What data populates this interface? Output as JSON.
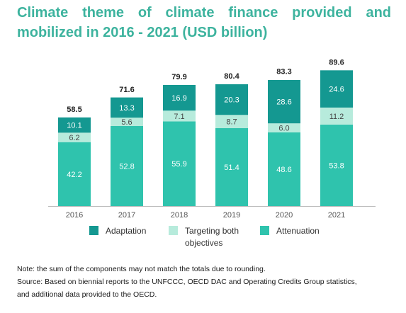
{
  "title": {
    "line1": "Climate theme of climate finance provided and",
    "line2": "mobilized in 2016 - 2021 (USD billion)"
  },
  "colors": {
    "adaptation": "#149891",
    "both": "#b7ebdc",
    "attenuation": "#2fc3ad",
    "title": "#3db39e"
  },
  "chart_data": {
    "type": "bar",
    "stacked": true,
    "categories": [
      "2016",
      "2017",
      "2018",
      "2019",
      "2020",
      "2021"
    ],
    "series": [
      {
        "name": "Attenuation",
        "values": [
          42.2,
          52.8,
          55.9,
          51.4,
          48.6,
          53.8
        ]
      },
      {
        "name": "Targeting both objectives",
        "values": [
          6.2,
          5.6,
          7.1,
          8.7,
          6.0,
          11.2
        ]
      },
      {
        "name": "Adaptation",
        "values": [
          10.1,
          13.3,
          16.9,
          20.3,
          28.6,
          24.6
        ]
      }
    ],
    "value_labels": [
      [
        "42.2",
        "52.8",
        "55.9",
        "51.4",
        "48.6",
        "53.8"
      ],
      [
        "6.2",
        "5.6",
        "7.1",
        "8.7",
        "6.0",
        "11.2"
      ],
      [
        "10.1",
        "13.3",
        "16.9",
        "20.3",
        "28.6",
        "24.6"
      ]
    ],
    "totals": [
      58.5,
      71.6,
      79.9,
      80.4,
      83.3,
      89.6
    ],
    "total_labels": [
      "58.5",
      "71.6",
      "79.9",
      "80.4",
      "83.3",
      "89.6"
    ],
    "ylim": [
      0,
      100
    ],
    "grid": false,
    "legend_position": "bottom"
  },
  "legend": {
    "adaptation": "Adaptation",
    "both_line1": "Targeting both",
    "both_line2": "objectives",
    "attenuation": "Attenuation"
  },
  "notes": {
    "note": "Note: the sum of the components may not match the totals due to rounding.",
    "source_line1": "Source: Based on biennial reports to the UNFCCC, OECD DAC and Operating Credits Group statistics,",
    "source_line2": "and additional data provided to the OECD."
  }
}
